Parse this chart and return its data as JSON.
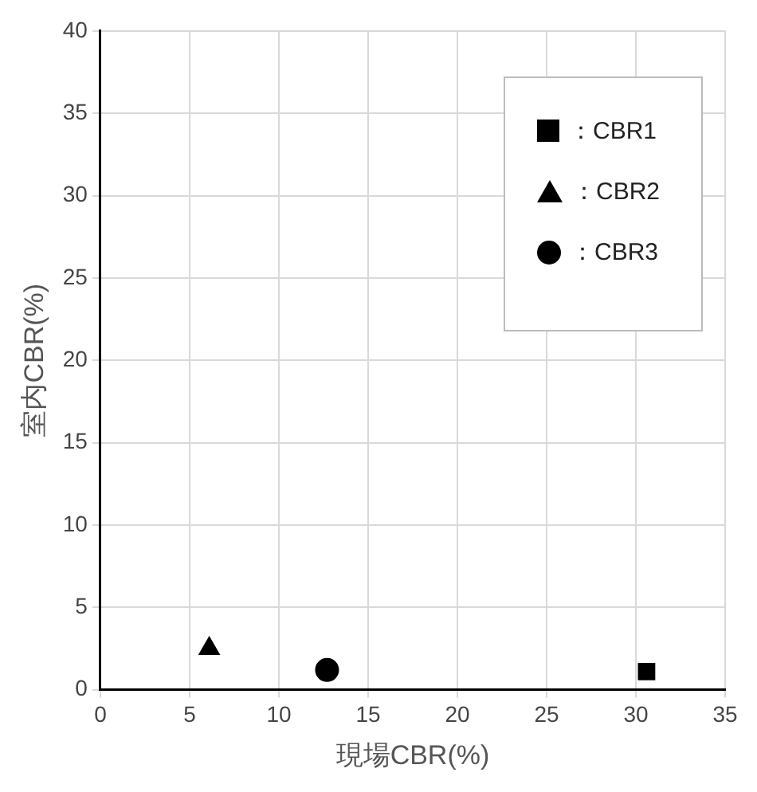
{
  "chart_data": {
    "type": "scatter",
    "xlabel": "現場CBR(%)",
    "ylabel": "室内CBR(%)",
    "xlim": [
      0,
      35
    ],
    "xticks": [
      0,
      5,
      10,
      15,
      20,
      25,
      30,
      35
    ],
    "ylim": [
      0,
      40
    ],
    "yticks": [
      0,
      5,
      10,
      15,
      20,
      25,
      30,
      35,
      40
    ],
    "grid": true,
    "legend": "top right",
    "series": [
      {
        "name": "：CBR1",
        "color": "#000000",
        "marker": "square",
        "x": [
          30.6
        ],
        "values": [
          1.1
        ]
      },
      {
        "name": "：CBR2",
        "color": "#000000",
        "marker": "triangle",
        "x": [
          6.1
        ],
        "values": [
          2.5
        ]
      },
      {
        "name": "：CBR3",
        "color": "#000000",
        "marker": "circle",
        "x": [
          12.7
        ],
        "values": [
          1.2
        ]
      }
    ]
  }
}
